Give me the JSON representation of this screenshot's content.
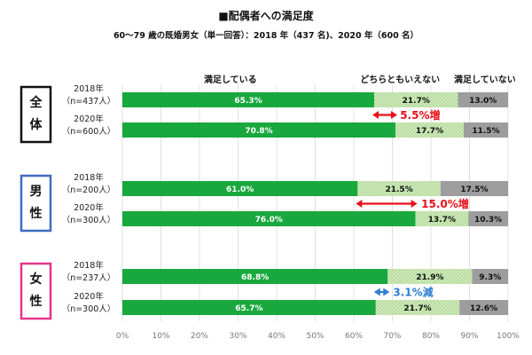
{
  "chart_data": {
    "type": "bar",
    "orientation": "horizontal-stacked",
    "title": "■配偶者への満足度",
    "subtitle": "60～79 歳の既婚男女（単一回答）：2018 年（437 名)、2020 年（600 名）",
    "legend": [
      "満足している",
      "どちらともいえない",
      "満足していない"
    ],
    "legend_placement": "top",
    "xlim": [
      0,
      100
    ],
    "xticks": [
      "0%",
      "10%",
      "20%",
      "30%",
      "40%",
      "50%",
      "60%",
      "70%",
      "80%",
      "90%",
      "100%"
    ],
    "grid": true,
    "colors": {
      "satisfied": "#19a83e",
      "neutral": "#b9dea0",
      "unsatisfied": "#9d9d9d",
      "increase": "#e8101a",
      "decrease": "#2d7dd2",
      "group_all": "#111111",
      "group_male": "#3f6cc0",
      "group_female": "#e5348b"
    },
    "groups": [
      {
        "label": "全体",
        "label_chars": [
          "全",
          "体"
        ],
        "color_key": "group_all",
        "rows": [
          {
            "year": "2018年",
            "n": "（n=437人）",
            "values": [
              65.3,
              21.7,
              13.0
            ],
            "labels": [
              "65.3%",
              "21.7%",
              "13.0%"
            ]
          },
          {
            "year": "2020年",
            "n": "（n=600人）",
            "values": [
              70.8,
              17.7,
              11.5
            ],
            "labels": [
              "70.8%",
              "17.7%",
              "11.5%"
            ]
          }
        ],
        "change": {
          "text": "5.5%増",
          "direction": "increase",
          "x_from": 65.3,
          "x_to": 70.8,
          "label_at": 72.0
        }
      },
      {
        "label": "男性",
        "label_chars": [
          "男",
          "性"
        ],
        "color_key": "group_male",
        "rows": [
          {
            "year": "2018年",
            "n": "（n=200人）",
            "values": [
              61.0,
              21.5,
              17.5
            ],
            "labels": [
              "61.0%",
              "21.5%",
              "17.5%"
            ]
          },
          {
            "year": "2020年",
            "n": "（n=300人）",
            "values": [
              76.0,
              13.7,
              10.3
            ],
            "labels": [
              "76.0%",
              "13.7%",
              "10.3%"
            ]
          }
        ],
        "change": {
          "text": "15.0%増",
          "direction": "increase",
          "x_from": 61.0,
          "x_to": 76.0,
          "label_at": 77.5
        }
      },
      {
        "label": "女性",
        "label_chars": [
          "女",
          "性"
        ],
        "color_key": "group_female",
        "rows": [
          {
            "year": "2018年",
            "n": "（n=237人）",
            "values": [
              68.8,
              21.9,
              9.3
            ],
            "labels": [
              "68.8%",
              "21.9%",
              "9.3%"
            ]
          },
          {
            "year": "2020年",
            "n": "（n=300人）",
            "values": [
              65.7,
              21.7,
              12.6
            ],
            "labels": [
              "65.7%",
              "21.7%",
              "12.6%"
            ]
          }
        ],
        "change": {
          "text": "3.1%減",
          "direction": "decrease",
          "x_from": 65.7,
          "x_to": 68.8,
          "label_at": 70.2
        }
      }
    ]
  }
}
